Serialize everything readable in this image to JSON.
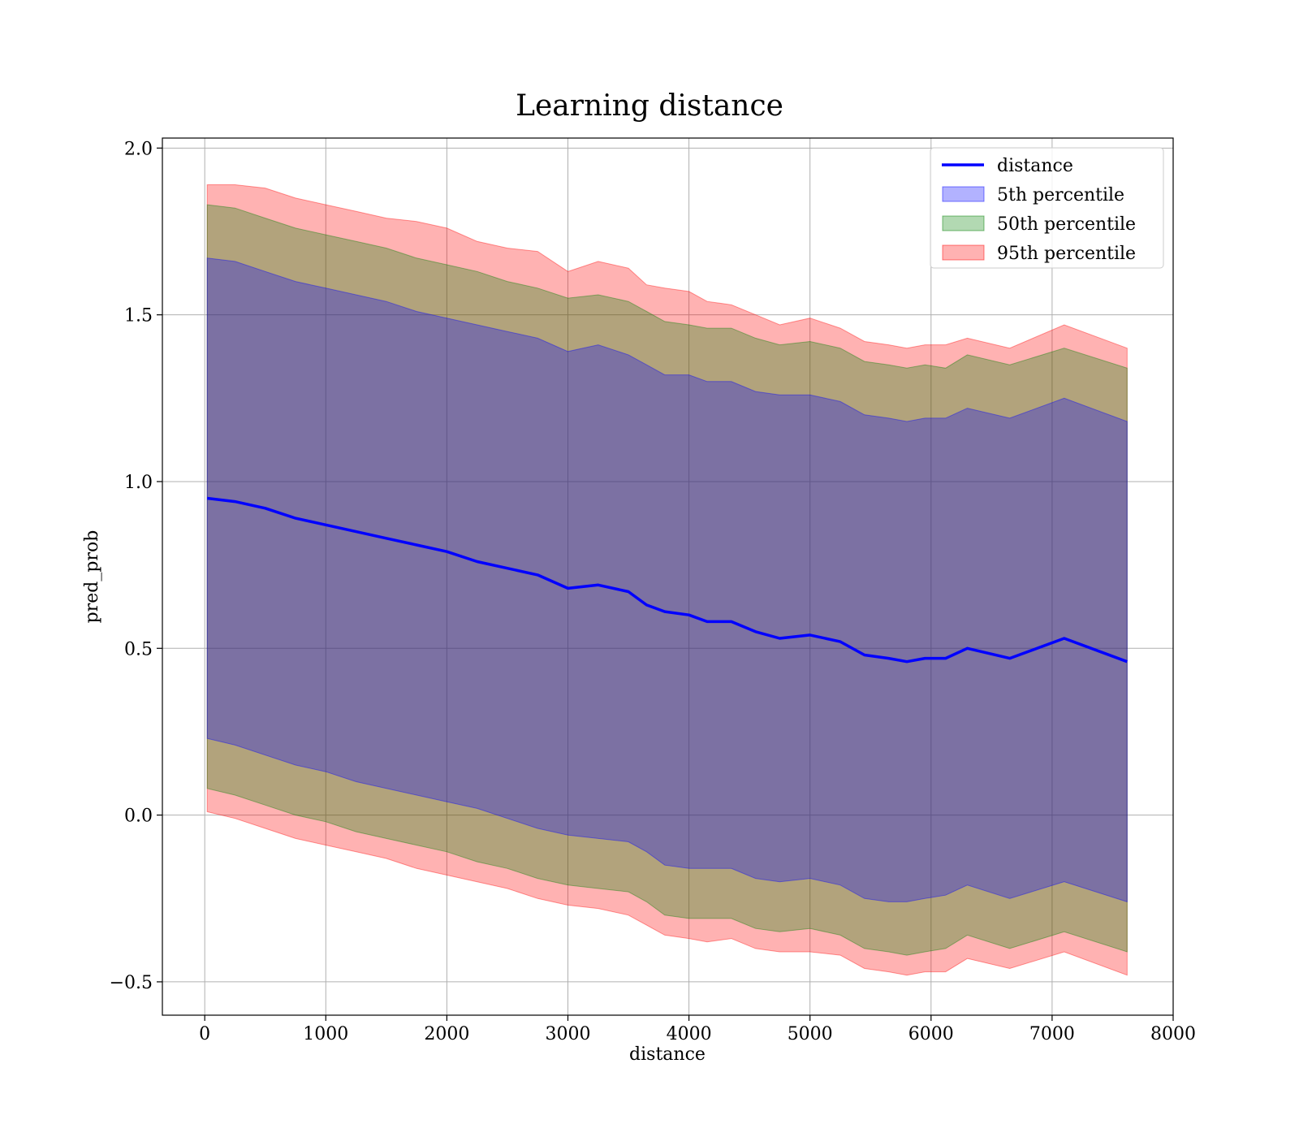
{
  "chart_data": {
    "type": "area",
    "title": "Learning distance",
    "xlabel": "distance",
    "ylabel": "pred_prob",
    "xlim": [
      -350,
      8000
    ],
    "ylim": [
      -0.6,
      2.03
    ],
    "xticks": [
      0,
      1000,
      2000,
      3000,
      4000,
      5000,
      6000,
      7000,
      8000
    ],
    "xtick_labels": [
      "0",
      "1000",
      "2000",
      "3000",
      "4000",
      "5000",
      "6000",
      "7000",
      "8000"
    ],
    "yticks": [
      -0.5,
      0.0,
      0.5,
      1.0,
      1.5,
      2.0
    ],
    "ytick_labels": [
      "−0.5",
      "0.0",
      "0.5",
      "1.0",
      "1.5",
      "2.0"
    ],
    "grid": true,
    "legend_position": "top-right",
    "x": [
      20,
      250,
      500,
      750,
      1000,
      1250,
      1500,
      1750,
      2000,
      2250,
      2500,
      2750,
      3000,
      3250,
      3500,
      3650,
      3800,
      4000,
      4150,
      4350,
      4550,
      4750,
      5000,
      5250,
      5450,
      5650,
      5800,
      5950,
      6120,
      6300,
      6650,
      7100,
      7620
    ],
    "series": [
      {
        "name": "distance",
        "style": "line",
        "color": "#0000ff",
        "values": [
          0.95,
          0.94,
          0.92,
          0.89,
          0.87,
          0.85,
          0.83,
          0.81,
          0.79,
          0.76,
          0.74,
          0.72,
          0.68,
          0.69,
          0.67,
          0.63,
          0.61,
          0.6,
          0.58,
          0.58,
          0.55,
          0.53,
          0.54,
          0.52,
          0.48,
          0.47,
          0.46,
          0.47,
          0.47,
          0.5,
          0.47,
          0.53,
          0.46
        ]
      },
      {
        "name": "5th percentile",
        "style": "band",
        "color": "#0000ff",
        "opacity": 0.3,
        "lower": [
          0.23,
          0.21,
          0.18,
          0.15,
          0.13,
          0.1,
          0.08,
          0.06,
          0.04,
          0.02,
          -0.01,
          -0.04,
          -0.06,
          -0.07,
          -0.08,
          -0.11,
          -0.15,
          -0.16,
          -0.16,
          -0.16,
          -0.19,
          -0.2,
          -0.19,
          -0.21,
          -0.25,
          -0.26,
          -0.26,
          -0.25,
          -0.24,
          -0.21,
          -0.25,
          -0.2,
          -0.26
        ],
        "upper": [
          1.67,
          1.66,
          1.63,
          1.6,
          1.58,
          1.56,
          1.54,
          1.51,
          1.49,
          1.47,
          1.45,
          1.43,
          1.39,
          1.41,
          1.38,
          1.35,
          1.32,
          1.32,
          1.3,
          1.3,
          1.27,
          1.26,
          1.26,
          1.24,
          1.2,
          1.19,
          1.18,
          1.19,
          1.19,
          1.22,
          1.19,
          1.25,
          1.18
        ]
      },
      {
        "name": "50th percentile",
        "style": "band",
        "color": "#008000",
        "opacity": 0.3,
        "lower": [
          0.08,
          0.06,
          0.03,
          0.0,
          -0.02,
          -0.05,
          -0.07,
          -0.09,
          -0.11,
          -0.14,
          -0.16,
          -0.19,
          -0.21,
          -0.22,
          -0.23,
          -0.26,
          -0.3,
          -0.31,
          -0.31,
          -0.31,
          -0.34,
          -0.35,
          -0.34,
          -0.36,
          -0.4,
          -0.41,
          -0.42,
          -0.41,
          -0.4,
          -0.36,
          -0.4,
          -0.35,
          -0.41
        ],
        "upper": [
          1.83,
          1.82,
          1.79,
          1.76,
          1.74,
          1.72,
          1.7,
          1.67,
          1.65,
          1.63,
          1.6,
          1.58,
          1.55,
          1.56,
          1.54,
          1.51,
          1.48,
          1.47,
          1.46,
          1.46,
          1.43,
          1.41,
          1.42,
          1.4,
          1.36,
          1.35,
          1.34,
          1.35,
          1.34,
          1.38,
          1.35,
          1.4,
          1.34
        ]
      },
      {
        "name": "95th percentile",
        "style": "band",
        "color": "#ff0000",
        "opacity": 0.3,
        "lower": [
          0.01,
          -0.01,
          -0.04,
          -0.07,
          -0.09,
          -0.11,
          -0.13,
          -0.16,
          -0.18,
          -0.2,
          -0.22,
          -0.25,
          -0.27,
          -0.28,
          -0.3,
          -0.33,
          -0.36,
          -0.37,
          -0.38,
          -0.37,
          -0.4,
          -0.41,
          -0.41,
          -0.42,
          -0.46,
          -0.47,
          -0.48,
          -0.47,
          -0.47,
          -0.43,
          -0.46,
          -0.41,
          -0.48
        ]
      }
    ]
  }
}
